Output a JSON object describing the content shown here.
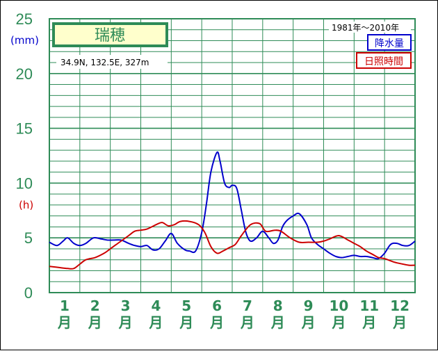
{
  "chart_data": {
    "type": "line",
    "title": "瑞穂",
    "station_info": "34.9N,  132.5E,  327m",
    "period": "1981年〜2010年",
    "y_unit_precip": "(mm)",
    "y_unit_sun": "(h)",
    "ylim": [
      0,
      25
    ],
    "yticks": [
      "0",
      "5",
      "10",
      "15",
      "20",
      "25"
    ],
    "months": [
      {
        "num": "1",
        "suffix": "月"
      },
      {
        "num": "2",
        "suffix": "月"
      },
      {
        "num": "3",
        "suffix": "月"
      },
      {
        "num": "4",
        "suffix": "月"
      },
      {
        "num": "5",
        "suffix": "月"
      },
      {
        "num": "6",
        "suffix": "月"
      },
      {
        "num": "7",
        "suffix": "月"
      },
      {
        "num": "8",
        "suffix": "月"
      },
      {
        "num": "9",
        "suffix": "月"
      },
      {
        "num": "10",
        "suffix": "月"
      },
      {
        "num": "11",
        "suffix": "月"
      },
      {
        "num": "12",
        "suffix": "月"
      }
    ],
    "x_range": [
      1,
      13
    ],
    "series": [
      {
        "name": "降水量",
        "color": "#0000cc",
        "x": [
          1.0,
          1.25,
          1.45,
          1.6,
          1.8,
          2.0,
          2.2,
          2.45,
          2.7,
          2.9,
          3.1,
          3.35,
          3.6,
          3.8,
          4.0,
          4.2,
          4.4,
          4.6,
          4.8,
          5.0,
          5.2,
          5.45,
          5.6,
          5.8,
          6.0,
          6.15,
          6.3,
          6.5,
          6.6,
          6.75,
          6.9,
          7.0,
          7.15,
          7.3,
          7.45,
          7.6,
          7.8,
          8.0,
          8.2,
          8.35,
          8.5,
          8.65,
          8.8,
          9.0,
          9.2,
          9.45,
          9.6,
          9.8,
          10.0,
          10.2,
          10.4,
          10.6,
          10.8,
          11.0,
          11.2,
          11.4,
          11.6,
          11.8,
          12.0,
          12.2,
          12.4,
          12.6,
          12.8,
          13.0
        ],
        "values": [
          4.6,
          4.3,
          4.7,
          5.0,
          4.5,
          4.3,
          4.5,
          5.0,
          4.9,
          4.8,
          4.8,
          4.8,
          4.5,
          4.3,
          4.2,
          4.3,
          3.9,
          4.0,
          4.7,
          5.4,
          4.5,
          3.9,
          3.8,
          3.8,
          5.5,
          8.0,
          11.0,
          12.8,
          12.0,
          10.0,
          9.6,
          9.8,
          9.5,
          7.5,
          5.5,
          4.7,
          5.0,
          5.6,
          5.0,
          4.5,
          4.8,
          6.0,
          6.6,
          7.0,
          7.2,
          6.2,
          5.0,
          4.4,
          4.0,
          3.6,
          3.3,
          3.2,
          3.3,
          3.4,
          3.3,
          3.3,
          3.2,
          3.1,
          3.6,
          4.4,
          4.5,
          4.3,
          4.3,
          4.7
        ]
      },
      {
        "name": "日照時間",
        "color": "#cc0000",
        "x": [
          1.0,
          1.3,
          1.6,
          1.8,
          2.0,
          2.2,
          2.5,
          2.8,
          3.0,
          3.3,
          3.6,
          3.8,
          4.0,
          4.2,
          4.5,
          4.7,
          4.9,
          5.1,
          5.3,
          5.6,
          5.9,
          6.1,
          6.3,
          6.5,
          6.7,
          6.9,
          7.1,
          7.3,
          7.6,
          7.9,
          8.1,
          8.4,
          8.6,
          8.9,
          9.2,
          9.5,
          9.8,
          10.0,
          10.2,
          10.5,
          10.8,
          11.0,
          11.2,
          11.4,
          11.6,
          11.8,
          12.0,
          12.3,
          12.6,
          12.8,
          13.0
        ],
        "values": [
          2.4,
          2.3,
          2.2,
          2.2,
          2.6,
          3.0,
          3.2,
          3.6,
          4.0,
          4.6,
          5.2,
          5.6,
          5.7,
          5.8,
          6.2,
          6.4,
          6.1,
          6.2,
          6.5,
          6.5,
          6.2,
          5.5,
          4.2,
          3.6,
          3.8,
          4.1,
          4.4,
          5.2,
          6.2,
          6.3,
          5.6,
          5.7,
          5.6,
          5.0,
          4.6,
          4.6,
          4.6,
          4.7,
          4.9,
          5.2,
          4.8,
          4.5,
          4.2,
          3.8,
          3.5,
          3.2,
          3.1,
          2.8,
          2.6,
          2.5,
          2.5
        ]
      }
    ],
    "grid": true,
    "legend_position": "top-right"
  }
}
